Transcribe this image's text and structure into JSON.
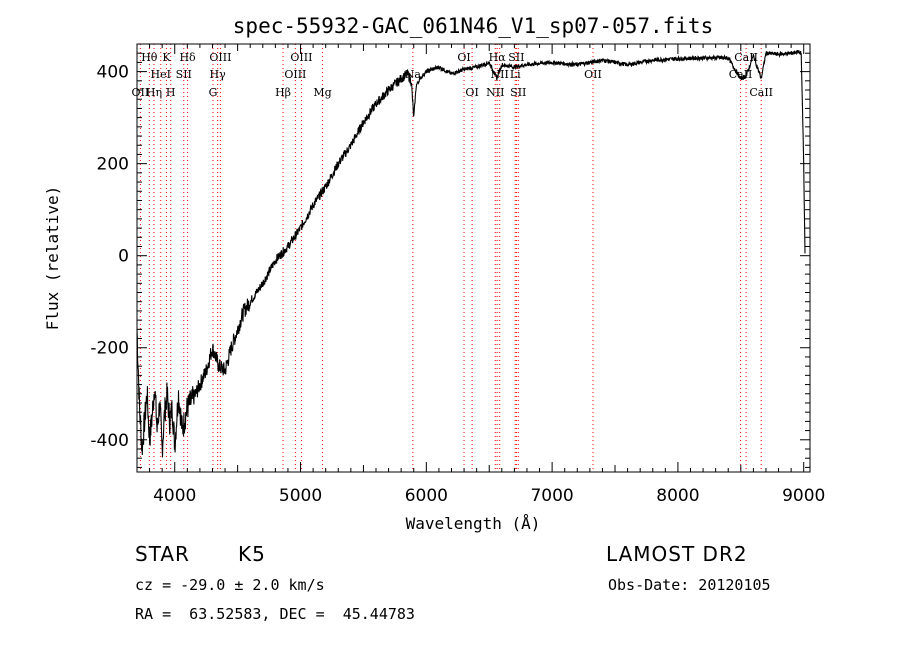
{
  "header": {
    "title": "spec-55932-GAC_061N46_V1_sp07-057.fits"
  },
  "info": {
    "class_label": "STAR",
    "subclass": "K5",
    "survey": "LAMOST DR2",
    "cz": "cz = -29.0 ± 2.0 km/s",
    "obs_date": "Obs-Date: 20120105",
    "coords": "RA =  63.52583, DEC =  45.44783"
  },
  "chart_data": {
    "type": "line",
    "title": "spec-55932-GAC_061N46_V1_sp07-057.fits",
    "xlabel": "Wavelength (Å)",
    "ylabel": "Flux (relative)",
    "xlim": [
      3700,
      9050
    ],
    "ylim": [
      -470,
      460
    ],
    "xticks": [
      4000,
      5000,
      6000,
      7000,
      8000,
      9000
    ],
    "yticks": [
      -400,
      -200,
      0,
      200,
      400
    ],
    "grid": false,
    "line_color": "#000000",
    "marker_color": "#ff0000",
    "spectrum": {
      "x": [
        3700,
        3720,
        3740,
        3760,
        3780,
        3800,
        3820,
        3840,
        3860,
        3880,
        3900,
        3920,
        3940,
        3960,
        3980,
        4000,
        4030,
        4060,
        4100,
        4150,
        4200,
        4250,
        4300,
        4350,
        4400,
        4450,
        4500,
        4550,
        4600,
        4700,
        4800,
        4900,
        5000,
        5100,
        5200,
        5300,
        5400,
        5500,
        5600,
        5700,
        5800,
        5850,
        5880,
        5900,
        5920,
        5950,
        6000,
        6100,
        6200,
        6300,
        6400,
        6500,
        6560,
        6600,
        6700,
        6800,
        6900,
        7000,
        7200,
        7400,
        7600,
        7800,
        8000,
        8200,
        8400,
        8498,
        8542,
        8600,
        8662,
        8700,
        8800,
        8900,
        8950,
        8980,
        9000,
        9010
      ],
      "y": [
        -160,
        -330,
        -420,
        -360,
        -300,
        -400,
        -350,
        -280,
        -380,
        -320,
        -420,
        -340,
        -300,
        -360,
        -330,
        -410,
        -300,
        -380,
        -330,
        -310,
        -280,
        -250,
        -200,
        -240,
        -250,
        -200,
        -160,
        -120,
        -100,
        -60,
        -10,
        20,
        60,
        110,
        150,
        200,
        240,
        290,
        330,
        360,
        385,
        395,
        380,
        300,
        370,
        385,
        400,
        410,
        395,
        405,
        410,
        420,
        385,
        415,
        410,
        415,
        418,
        420,
        415,
        425,
        415,
        425,
        428,
        430,
        430,
        385,
        390,
        435,
        385,
        440,
        438,
        440,
        443,
        440,
        200,
        5
      ]
    },
    "lines": [
      {
        "label": "OII",
        "x": 3727,
        "row": 2
      },
      {
        "label": "Hθ",
        "x": 3798,
        "row": 0
      },
      {
        "label": "Hη",
        "x": 3835,
        "row": 2
      },
      {
        "label": "HeI",
        "x": 3889,
        "row": 1
      },
      {
        "label": "K",
        "x": 3934,
        "row": 0
      },
      {
        "label": "H",
        "x": 3968,
        "row": 2
      },
      {
        "label": "SII",
        "x": 4072,
        "row": 1
      },
      {
        "label": "Hδ",
        "x": 4102,
        "row": 0
      },
      {
        "label": "G",
        "x": 4304,
        "row": 2
      },
      {
        "label": "Hγ",
        "x": 4341,
        "row": 1
      },
      {
        "label": "OIII",
        "x": 4363,
        "row": 0
      },
      {
        "label": "Hβ",
        "x": 4861,
        "row": 2
      },
      {
        "label": "OIII",
        "x": 4959,
        "row": 1
      },
      {
        "label": "OIII",
        "x": 5007,
        "row": 0
      },
      {
        "label": "Mg",
        "x": 5175,
        "row": 2
      },
      {
        "label": "Na",
        "x": 5893,
        "row": 1
      },
      {
        "label": "OI",
        "x": 6300,
        "row": 0
      },
      {
        "label": "OI",
        "x": 6364,
        "row": 2
      },
      {
        "label": "NII",
        "x": 6548,
        "row": 2
      },
      {
        "label": "Hα",
        "x": 6563,
        "row": 0
      },
      {
        "label": "NII",
        "x": 6583,
        "row": 1
      },
      {
        "label": "Li",
        "x": 6707,
        "row": 1
      },
      {
        "label": "SII",
        "x": 6716,
        "row": 0
      },
      {
        "label": "SII",
        "x": 6731,
        "row": 2
      },
      {
        "label": "OII",
        "x": 7325,
        "row": 1
      },
      {
        "label": "CaII",
        "x": 8498,
        "row": 1
      },
      {
        "label": "CaII",
        "x": 8542,
        "row": 0
      },
      {
        "label": "CaII",
        "x": 8662,
        "row": 2
      }
    ]
  }
}
